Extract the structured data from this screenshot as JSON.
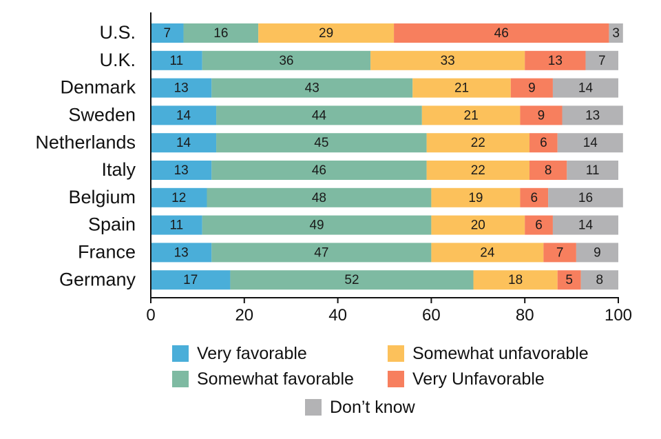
{
  "chart_data": {
    "type": "bar",
    "orientation": "horizontal",
    "stacked": true,
    "title": "",
    "xlabel": "",
    "ylabel": "",
    "xlim": [
      0,
      100
    ],
    "xticks": [
      0,
      20,
      40,
      60,
      80,
      100
    ],
    "categories": [
      "U.S.",
      "U.K.",
      "Denmark",
      "Sweden",
      "Netherlands",
      "Italy",
      "Belgium",
      "Spain",
      "France",
      "Germany"
    ],
    "series": [
      {
        "name": "Very favorable",
        "color": "#4aaed9",
        "values": [
          7,
          11,
          13,
          14,
          14,
          13,
          12,
          11,
          13,
          17
        ]
      },
      {
        "name": "Somewhat favorable",
        "color": "#7ebaa2",
        "values": [
          16,
          36,
          43,
          44,
          45,
          46,
          48,
          49,
          47,
          52
        ]
      },
      {
        "name": "Somewhat unfavorable",
        "color": "#fcc15b",
        "values": [
          29,
          33,
          21,
          21,
          22,
          22,
          19,
          20,
          24,
          18
        ]
      },
      {
        "name": "Very Unfavorable",
        "color": "#f77f5e",
        "values": [
          46,
          13,
          9,
          9,
          6,
          8,
          6,
          6,
          7,
          5
        ]
      },
      {
        "name": "Don’t know",
        "color": "#b3b3b5",
        "values": [
          3,
          7,
          14,
          13,
          14,
          11,
          16,
          14,
          9,
          8
        ]
      }
    ],
    "legend_position": "bottom"
  }
}
